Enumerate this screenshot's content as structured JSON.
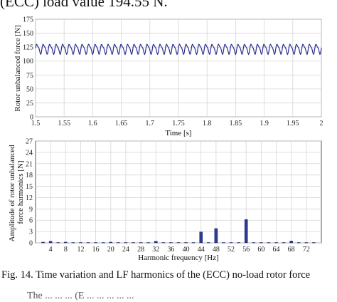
{
  "page": {
    "header_text": "(ECC) load value 194.55 N.",
    "caption": "Fig. 14. Time variation and LF harmonics of the (ECC) no-load rotor force",
    "footer_text": "The ... ... ... (E ... ... ... ... ..."
  },
  "chart_data": [
    {
      "type": "line",
      "xlabel": "Time [s]",
      "ylabel": "Rotor unbalanced force [N]",
      "xlim": [
        1.5,
        2.0
      ],
      "ylim": [
        0,
        175
      ],
      "xticks": [
        "1.5",
        "1.55",
        "1.6",
        "1.65",
        "1.7",
        "1.75",
        "1.8",
        "1.85",
        "1.9",
        "1.95",
        "2"
      ],
      "yticks": [
        "0",
        "25",
        "50",
        "75",
        "100",
        "125",
        "150",
        "175"
      ],
      "grid": true,
      "series": [
        {
          "color": "#2b2d8f",
          "mean": 122,
          "amplitude": 10,
          "cycles": 44,
          "samples": 600
        }
      ]
    },
    {
      "type": "bar",
      "xlabel": "Harmonic frequency [Hz]",
      "ylabel": "Amplitude of rotor unbalanced force harmonics [N]",
      "ylim": [
        0,
        27
      ],
      "yticks": [
        "0",
        "3",
        "6",
        "9",
        "12",
        "15",
        "18",
        "21",
        "24",
        "27"
      ],
      "categories": [
        "4",
        "8",
        "12",
        "16",
        "20",
        "24",
        "28",
        "32",
        "36",
        "40",
        "44",
        "48",
        "52",
        "56",
        "60",
        "64",
        "68",
        "72"
      ],
      "x": [
        2,
        4,
        6,
        8,
        10,
        12,
        14,
        16,
        18,
        20,
        22,
        24,
        26,
        28,
        30,
        32,
        34,
        36,
        38,
        40,
        42,
        44,
        46,
        48,
        50,
        52,
        54,
        56,
        58,
        60,
        62,
        64,
        66,
        68,
        70,
        72,
        74
      ],
      "values": [
        0.2,
        0.45,
        0.1,
        0.2,
        0.1,
        0.1,
        0.1,
        0.1,
        0.1,
        0.2,
        0.1,
        0.1,
        0.1,
        0.1,
        0.1,
        0.45,
        0.1,
        0.1,
        0.1,
        0.1,
        0.1,
        2.9,
        0.1,
        3.8,
        0.1,
        0.1,
        0.1,
        6.2,
        0.1,
        0.1,
        0.1,
        0.1,
        0.1,
        0.5,
        0.1,
        0.1,
        0.1
      ],
      "xlim": [
        0,
        76
      ],
      "grid": true,
      "bar_color": "#2b3a8f"
    }
  ]
}
